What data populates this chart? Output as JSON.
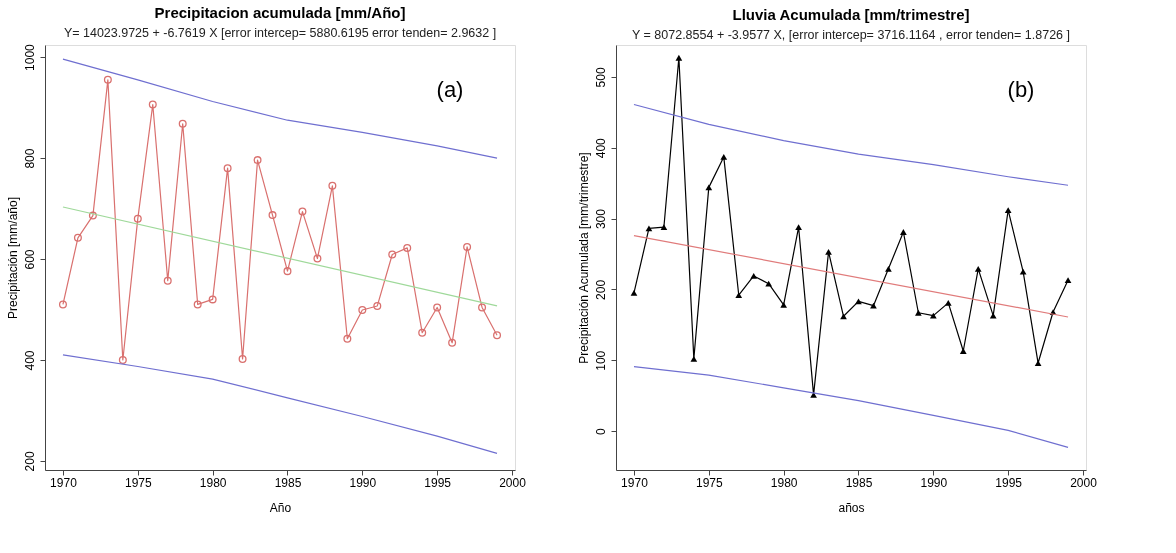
{
  "chart_data": [
    {
      "type": "line",
      "title": "Precipitacion acumulada [mm/Año]",
      "subtitle": "Y= 14023.9725 + -6.7619 X [error intercep= 5880.6195 error tenden= 2.9632 ]",
      "xlabel": "Año",
      "ylabel": "Precipitación [mm/año]",
      "annotations": [
        "(a)"
      ],
      "x": [
        1970,
        1971,
        1972,
        1973,
        1974,
        1975,
        1976,
        1977,
        1978,
        1979,
        1980,
        1981,
        1982,
        1983,
        1984,
        1985,
        1986,
        1987,
        1988,
        1989,
        1990,
        1991,
        1992,
        1993,
        1994,
        1995,
        1996,
        1997,
        1998,
        1999
      ],
      "xlim": [
        1968.8,
        2000.2
      ],
      "xticks": [
        1970,
        1975,
        1980,
        1985,
        1990,
        1995,
        2000
      ],
      "ylim": [
        182,
        1024
      ],
      "yticks": [
        200,
        400,
        600,
        800,
        1000
      ],
      "grid": false,
      "series": [
        {
          "color": "#d9706e",
          "marker": "circle",
          "values": [
            510,
            642,
            686,
            955,
            400,
            680,
            906,
            557,
            868,
            510,
            520,
            780,
            402,
            796,
            687,
            576,
            694,
            601,
            745,
            442,
            499,
            507,
            609,
            622,
            454,
            504,
            434,
            624,
            504,
            449
          ]
        },
        {
          "color": "#9fd99a",
          "marker": "none",
          "x": [
            1970,
            1999
          ],
          "values": [
            703,
            507
          ]
        },
        {
          "color": "#6f6fd0",
          "marker": "none",
          "x": [
            1970,
            1975,
            1980,
            1985,
            1990,
            1995,
            1999
          ],
          "values": [
            996,
            955,
            912,
            875,
            851,
            824,
            800
          ]
        },
        {
          "color": "#6f6fd0",
          "marker": "none",
          "x": [
            1970,
            1975,
            1980,
            1985,
            1990,
            1995,
            1999
          ],
          "values": [
            410,
            387,
            362,
            325,
            288,
            249,
            215
          ]
        }
      ]
    },
    {
      "type": "line",
      "title": "Lluvia Acumulada [mm/trimestre]",
      "subtitle": "Y =  8072.8554 + -3.9577 X, [error intercep= 3716.1164 , error tenden= 1.8726 ]",
      "xlabel": "años",
      "ylabel": "Precipitación Acumulada [mm/trimestre]",
      "annotations": [
        "(b)"
      ],
      "x": [
        1970,
        1971,
        1972,
        1973,
        1974,
        1975,
        1976,
        1977,
        1978,
        1979,
        1980,
        1981,
        1982,
        1983,
        1984,
        1985,
        1986,
        1987,
        1988,
        1989,
        1990,
        1991,
        1992,
        1993,
        1994,
        1995,
        1996,
        1997,
        1998,
        1999
      ],
      "xlim": [
        1968.8,
        2000.2
      ],
      "xticks": [
        1970,
        1975,
        1980,
        1985,
        1990,
        1995,
        2000
      ],
      "ylim": [
        -55,
        545
      ],
      "yticks": [
        0,
        100,
        200,
        300,
        400,
        500
      ],
      "grid": false,
      "series": [
        {
          "color": "#000000",
          "marker": "triangle",
          "values": [
            195,
            286,
            288,
            527,
            102,
            344,
            387,
            192,
            219,
            208,
            178,
            288,
            51,
            253,
            162,
            183,
            177,
            229,
            281,
            167,
            163,
            181,
            113,
            229,
            163,
            312,
            225,
            96,
            168,
            213
          ]
        },
        {
          "color": "#e07b7b",
          "marker": "none",
          "x": [
            1970,
            1999
          ],
          "values": [
            276,
            161
          ]
        },
        {
          "color": "#6f6fd0",
          "marker": "none",
          "x": [
            1970,
            1975,
            1980,
            1985,
            1990,
            1995,
            1999
          ],
          "values": [
            461,
            433,
            410,
            391,
            376,
            359,
            347
          ]
        },
        {
          "color": "#6f6fd0",
          "marker": "none",
          "x": [
            1970,
            1975,
            1980,
            1985,
            1990,
            1995,
            1999
          ],
          "values": [
            91,
            79,
            61,
            43,
            22,
            1,
            -23
          ]
        }
      ]
    }
  ]
}
